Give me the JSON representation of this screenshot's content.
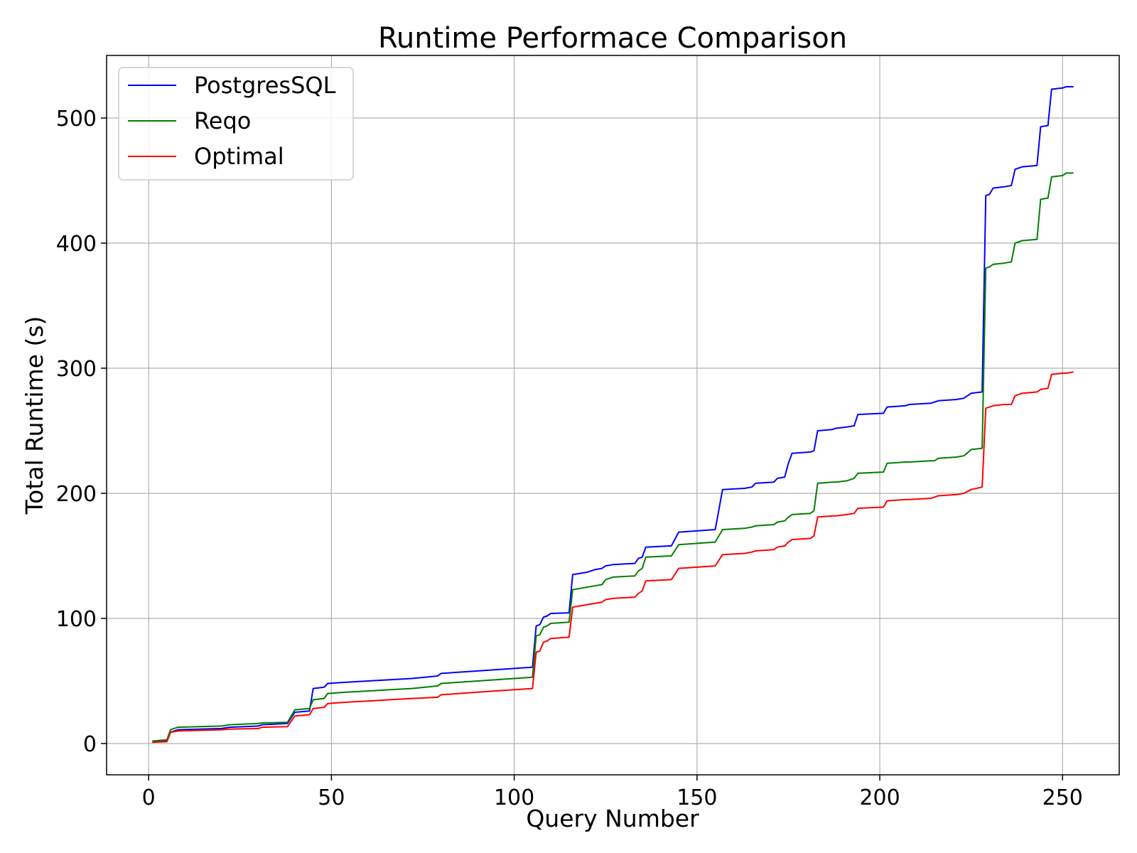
{
  "chart_data": {
    "type": "line",
    "title": "Runtime Performace Comparison",
    "xlabel": "Query Number",
    "ylabel": "Total Runtime (s)",
    "xlim": [
      -11.5,
      265.5
    ],
    "ylim": [
      -25,
      550
    ],
    "xticks": [
      0,
      50,
      100,
      150,
      200,
      250
    ],
    "yticks": [
      0,
      100,
      200,
      300,
      400,
      500
    ],
    "grid": true,
    "legend_position": "top-left",
    "series": [
      {
        "name": "PostgresSQL",
        "color": "#0000ff",
        "points": [
          [
            1,
            1.5
          ],
          [
            5,
            2
          ],
          [
            6,
            9
          ],
          [
            8,
            11
          ],
          [
            20,
            12
          ],
          [
            22,
            13
          ],
          [
            30,
            14
          ],
          [
            31,
            15
          ],
          [
            38,
            16
          ],
          [
            40,
            25
          ],
          [
            44,
            26
          ],
          [
            45,
            44
          ],
          [
            48,
            45
          ],
          [
            49,
            48
          ],
          [
            54,
            49
          ],
          [
            60,
            50
          ],
          [
            66,
            51
          ],
          [
            72,
            52
          ],
          [
            79,
            54
          ],
          [
            80,
            56
          ],
          [
            90,
            58
          ],
          [
            100,
            60
          ],
          [
            105,
            61
          ],
          [
            106,
            94
          ],
          [
            107,
            95
          ],
          [
            108,
            101
          ],
          [
            109,
            102
          ],
          [
            110,
            104
          ],
          [
            115,
            104.5
          ],
          [
            116,
            135
          ],
          [
            118,
            136
          ],
          [
            120,
            137
          ],
          [
            122,
            139
          ],
          [
            124,
            140
          ],
          [
            125,
            142
          ],
          [
            127,
            143
          ],
          [
            133,
            144
          ],
          [
            134,
            148
          ],
          [
            135,
            149
          ],
          [
            136,
            157
          ],
          [
            143,
            158
          ],
          [
            145,
            169
          ],
          [
            155,
            171
          ],
          [
            157,
            203
          ],
          [
            163,
            204
          ],
          [
            165,
            205
          ],
          [
            166,
            208
          ],
          [
            171,
            209
          ],
          [
            172,
            212
          ],
          [
            174,
            213
          ],
          [
            175,
            224
          ],
          [
            176,
            232
          ],
          [
            181,
            233
          ],
          [
            182,
            234
          ],
          [
            183,
            250
          ],
          [
            187,
            251
          ],
          [
            188,
            252
          ],
          [
            191,
            253
          ],
          [
            193,
            254
          ],
          [
            194,
            263
          ],
          [
            201,
            264
          ],
          [
            202,
            269
          ],
          [
            207,
            270
          ],
          [
            208,
            271
          ],
          [
            214,
            272
          ],
          [
            215,
            273
          ],
          [
            216,
            274
          ],
          [
            221,
            275
          ],
          [
            223,
            276
          ],
          [
            225,
            280
          ],
          [
            228,
            281
          ],
          [
            229,
            438
          ],
          [
            230,
            439
          ],
          [
            231,
            444
          ],
          [
            234,
            445
          ],
          [
            236,
            446
          ],
          [
            237,
            459
          ],
          [
            239,
            461
          ],
          [
            243,
            462
          ],
          [
            244,
            493
          ],
          [
            246,
            494
          ],
          [
            247,
            523
          ],
          [
            250,
            524
          ],
          [
            251,
            525
          ],
          [
            253,
            525
          ]
        ]
      },
      {
        "name": "Reqo",
        "color": "#008000",
        "points": [
          [
            1,
            2
          ],
          [
            5,
            3
          ],
          [
            6,
            11
          ],
          [
            8,
            13
          ],
          [
            20,
            14
          ],
          [
            22,
            15
          ],
          [
            30,
            16
          ],
          [
            31,
            16.5
          ],
          [
            38,
            17
          ],
          [
            40,
            27
          ],
          [
            44,
            28
          ],
          [
            45,
            35
          ],
          [
            48,
            36
          ],
          [
            49,
            40
          ],
          [
            54,
            41
          ],
          [
            60,
            42
          ],
          [
            66,
            43
          ],
          [
            72,
            44
          ],
          [
            79,
            46
          ],
          [
            80,
            48
          ],
          [
            90,
            50
          ],
          [
            100,
            52
          ],
          [
            105,
            53
          ],
          [
            106,
            86
          ],
          [
            107,
            87
          ],
          [
            108,
            93
          ],
          [
            109,
            94
          ],
          [
            110,
            96
          ],
          [
            115,
            97
          ],
          [
            116,
            123
          ],
          [
            118,
            124
          ],
          [
            120,
            125
          ],
          [
            122,
            126
          ],
          [
            124,
            127
          ],
          [
            125,
            131
          ],
          [
            127,
            133
          ],
          [
            133,
            134
          ],
          [
            134,
            138
          ],
          [
            135,
            140
          ],
          [
            136,
            149
          ],
          [
            143,
            150
          ],
          [
            145,
            159
          ],
          [
            155,
            161
          ],
          [
            157,
            171
          ],
          [
            163,
            172
          ],
          [
            165,
            173
          ],
          [
            166,
            174
          ],
          [
            171,
            175
          ],
          [
            172,
            177
          ],
          [
            174,
            178
          ],
          [
            175,
            181
          ],
          [
            176,
            183
          ],
          [
            181,
            184
          ],
          [
            182,
            186
          ],
          [
            183,
            208
          ],
          [
            187,
            209
          ],
          [
            188,
            209
          ],
          [
            191,
            210
          ],
          [
            193,
            212
          ],
          [
            194,
            216
          ],
          [
            201,
            217
          ],
          [
            202,
            224
          ],
          [
            207,
            225
          ],
          [
            208,
            225
          ],
          [
            214,
            226
          ],
          [
            215,
            226
          ],
          [
            216,
            228
          ],
          [
            221,
            229
          ],
          [
            223,
            230
          ],
          [
            225,
            235
          ],
          [
            228,
            236
          ],
          [
            229,
            380
          ],
          [
            230,
            381
          ],
          [
            231,
            383
          ],
          [
            234,
            384
          ],
          [
            236,
            385
          ],
          [
            237,
            400
          ],
          [
            239,
            402
          ],
          [
            243,
            403
          ],
          [
            244,
            435
          ],
          [
            246,
            436
          ],
          [
            247,
            453
          ],
          [
            250,
            454
          ],
          [
            251,
            456
          ],
          [
            253,
            456
          ]
        ]
      },
      {
        "name": "Optimal",
        "color": "#ff0000",
        "points": [
          [
            1,
            1
          ],
          [
            5,
            1.5
          ],
          [
            6,
            9
          ],
          [
            8,
            10
          ],
          [
            20,
            11
          ],
          [
            22,
            11.5
          ],
          [
            30,
            12
          ],
          [
            31,
            13
          ],
          [
            38,
            13.5
          ],
          [
            40,
            22
          ],
          [
            44,
            23
          ],
          [
            45,
            28
          ],
          [
            48,
            29
          ],
          [
            49,
            32
          ],
          [
            54,
            33
          ],
          [
            60,
            34
          ],
          [
            66,
            35
          ],
          [
            72,
            36
          ],
          [
            79,
            37
          ],
          [
            80,
            39
          ],
          [
            90,
            41
          ],
          [
            100,
            43
          ],
          [
            105,
            44
          ],
          [
            106,
            73
          ],
          [
            107,
            74
          ],
          [
            108,
            81
          ],
          [
            109,
            82
          ],
          [
            110,
            84
          ],
          [
            115,
            85
          ],
          [
            116,
            109
          ],
          [
            118,
            110
          ],
          [
            120,
            111
          ],
          [
            122,
            112
          ],
          [
            124,
            113
          ],
          [
            125,
            115
          ],
          [
            127,
            116
          ],
          [
            133,
            117
          ],
          [
            134,
            120
          ],
          [
            135,
            122
          ],
          [
            136,
            130
          ],
          [
            143,
            131
          ],
          [
            145,
            140
          ],
          [
            155,
            142
          ],
          [
            157,
            151
          ],
          [
            163,
            152
          ],
          [
            165,
            153
          ],
          [
            166,
            154
          ],
          [
            171,
            155
          ],
          [
            172,
            157
          ],
          [
            174,
            158
          ],
          [
            175,
            161
          ],
          [
            176,
            163
          ],
          [
            181,
            164
          ],
          [
            182,
            166
          ],
          [
            183,
            181
          ],
          [
            187,
            182
          ],
          [
            188,
            182
          ],
          [
            191,
            183
          ],
          [
            193,
            184
          ],
          [
            194,
            188
          ],
          [
            201,
            189
          ],
          [
            202,
            194
          ],
          [
            207,
            195
          ],
          [
            208,
            195
          ],
          [
            214,
            196
          ],
          [
            215,
            197
          ],
          [
            216,
            198
          ],
          [
            221,
            199
          ],
          [
            223,
            200
          ],
          [
            225,
            203
          ],
          [
            228,
            205
          ],
          [
            229,
            268
          ],
          [
            230,
            269
          ],
          [
            231,
            270
          ],
          [
            234,
            271
          ],
          [
            236,
            271
          ],
          [
            237,
            278
          ],
          [
            239,
            280
          ],
          [
            243,
            281
          ],
          [
            244,
            283
          ],
          [
            246,
            284
          ],
          [
            247,
            295
          ],
          [
            250,
            296
          ],
          [
            251,
            296
          ],
          [
            253,
            297
          ]
        ]
      }
    ]
  }
}
